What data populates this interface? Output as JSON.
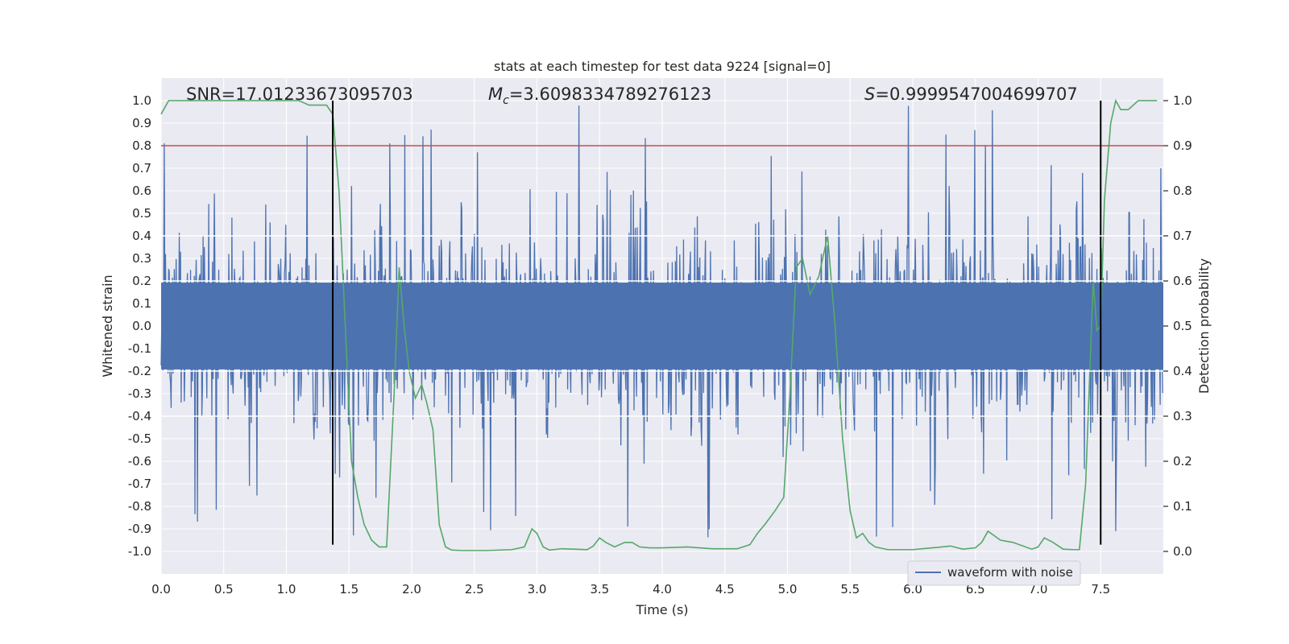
{
  "chart_data": {
    "type": "line",
    "title": "stats at each timestep for test data 9224 [signal=0]",
    "xlabel": "Time (s)",
    "ylabel": "Whitened strain",
    "y2label": "Detection probability",
    "xlim": [
      0.0,
      8.0
    ],
    "ylim": [
      -1.1,
      1.1
    ],
    "y2lim": [
      -0.05,
      1.05
    ],
    "xticks": [
      "0.0",
      "0.5",
      "1.0",
      "1.5",
      "2.0",
      "2.5",
      "3.0",
      "3.5",
      "4.0",
      "4.5",
      "5.0",
      "5.5",
      "6.0",
      "6.5",
      "7.0",
      "7.5"
    ],
    "xtick_values": [
      0.0,
      0.5,
      1.0,
      1.5,
      2.0,
      2.5,
      3.0,
      3.5,
      4.0,
      4.5,
      5.0,
      5.5,
      6.0,
      6.5,
      7.0,
      7.5
    ],
    "yticks": [
      "1.0",
      "0.9",
      "0.8",
      "0.7",
      "0.6",
      "0.5",
      "0.4",
      "0.3",
      "0.2",
      "0.1",
      "0.0",
      "-0.1",
      "-0.2",
      "-0.3",
      "-0.4",
      "-0.5",
      "-0.6",
      "-0.7",
      "-0.8",
      "-0.9",
      "-1.0"
    ],
    "ytick_values": [
      1.0,
      0.9,
      0.8,
      0.7,
      0.6,
      0.5,
      0.4,
      0.3,
      0.2,
      0.1,
      0.0,
      -0.1,
      -0.2,
      -0.3,
      -0.4,
      -0.5,
      -0.6,
      -0.7,
      -0.8,
      -0.9,
      -1.0
    ],
    "y2ticks": [
      "1.0",
      "0.9",
      "0.8",
      "0.7",
      "0.6",
      "0.5",
      "0.4",
      "0.3",
      "0.2",
      "0.1",
      "0.0"
    ],
    "y2tick_values": [
      1.0,
      0.9,
      0.8,
      0.7,
      0.6,
      0.5,
      0.4,
      0.3,
      0.2,
      0.1,
      0.0
    ],
    "y2grid_values": [
      0.7,
      0.6,
      0.4,
      0.3
    ],
    "annotations": {
      "snr": "SNR=17.01233673095703",
      "mc_symbol": "M",
      "mc_sub": "c",
      "mc_value": "=3.6098334789276123",
      "s_symbol": "S",
      "s_value": "=0.9999547004699707"
    },
    "threshold": {
      "value": 0.9,
      "axis": "right",
      "color": "#c44e52"
    },
    "markers": {
      "times": [
        1.37,
        7.5
      ],
      "range": [
        -0.97,
        1.0
      ],
      "color": "#000000"
    },
    "waveform": {
      "name": "waveform with noise",
      "color": "#4c72b0",
      "duration": 8.0,
      "typical_amplitude": 0.35,
      "peak_amplitude": 0.98,
      "samples": 1600
    },
    "probability": {
      "color": "#55a868",
      "t": [
        0.0,
        0.06,
        0.2,
        0.4,
        0.6,
        0.8,
        1.0,
        1.1,
        1.18,
        1.25,
        1.32,
        1.37,
        1.42,
        1.47,
        1.52,
        1.57,
        1.62,
        1.68,
        1.74,
        1.8,
        1.86,
        1.9,
        1.94,
        1.98,
        2.03,
        2.08,
        2.12,
        2.17,
        2.22,
        2.27,
        2.32,
        2.4,
        2.6,
        2.8,
        2.9,
        2.96,
        3.0,
        3.05,
        3.1,
        3.2,
        3.3,
        3.4,
        3.45,
        3.5,
        3.55,
        3.62,
        3.7,
        3.76,
        3.82,
        3.9,
        4.0,
        4.2,
        4.4,
        4.6,
        4.7,
        4.76,
        4.82,
        4.9,
        4.97,
        5.02,
        5.07,
        5.12,
        5.18,
        5.25,
        5.32,
        5.38,
        5.44,
        5.5,
        5.55,
        5.6,
        5.65,
        5.7,
        5.8,
        6.0,
        6.2,
        6.3,
        6.4,
        6.5,
        6.55,
        6.6,
        6.7,
        6.8,
        6.95,
        7.0,
        7.05,
        7.12,
        7.2,
        7.28,
        7.33,
        7.38,
        7.44,
        7.47,
        7.5,
        7.53,
        7.58,
        7.62,
        7.66,
        7.72,
        7.8,
        7.95
      ],
      "p": [
        0.97,
        1.0,
        1.0,
        1.0,
        1.0,
        1.0,
        1.0,
        1.0,
        0.99,
        0.99,
        0.99,
        0.97,
        0.8,
        0.5,
        0.2,
        0.12,
        0.06,
        0.025,
        0.01,
        0.01,
        0.35,
        0.63,
        0.5,
        0.4,
        0.34,
        0.37,
        0.33,
        0.27,
        0.06,
        0.01,
        0.003,
        0.002,
        0.002,
        0.004,
        0.01,
        0.05,
        0.04,
        0.01,
        0.003,
        0.006,
        0.005,
        0.004,
        0.012,
        0.03,
        0.02,
        0.01,
        0.02,
        0.02,
        0.01,
        0.008,
        0.008,
        0.01,
        0.006,
        0.006,
        0.015,
        0.04,
        0.06,
        0.09,
        0.12,
        0.35,
        0.63,
        0.65,
        0.57,
        0.61,
        0.7,
        0.5,
        0.25,
        0.09,
        0.03,
        0.04,
        0.02,
        0.01,
        0.004,
        0.004,
        0.009,
        0.012,
        0.005,
        0.008,
        0.02,
        0.045,
        0.025,
        0.02,
        0.005,
        0.01,
        0.03,
        0.02,
        0.005,
        0.004,
        0.004,
        0.15,
        0.6,
        0.49,
        0.5,
        0.78,
        0.95,
        1.0,
        0.98,
        0.98,
        1.0,
        1.0
      ]
    }
  }
}
